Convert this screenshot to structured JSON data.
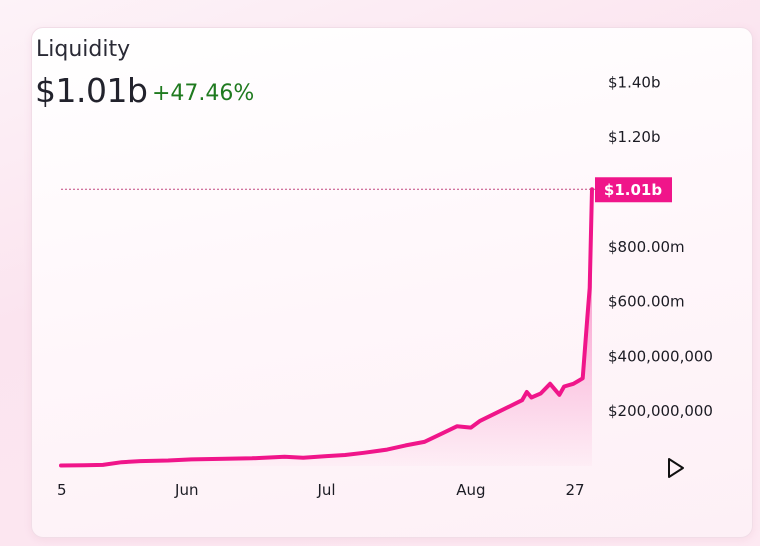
{
  "header": {
    "title": "Liquidity",
    "value": "$1.01b",
    "change": "+47.46%"
  },
  "colors": {
    "accent": "#f0158a",
    "change_positive": "#1f7a1f",
    "text": "#22222c"
  },
  "icons": {
    "play": "play-icon"
  },
  "chart_data": {
    "type": "area",
    "title": "Liquidity",
    "xlabel": "",
    "ylabel": "",
    "ylim": [
      0,
      1500000000
    ],
    "y_ticks": [
      {
        "value": 200000000,
        "label": "$200,000,000"
      },
      {
        "value": 400000000,
        "label": "$400,000,000"
      },
      {
        "value": 600000000,
        "label": "$600.00m"
      },
      {
        "value": 800000000,
        "label": "$800.00m"
      },
      {
        "value": 1200000000,
        "label": "$1.20b"
      },
      {
        "value": 1400000000,
        "label": "$1.40b"
      }
    ],
    "x_ticks": [
      {
        "date": "2024-05-05",
        "label": "5"
      },
      {
        "date": "2024-06-01",
        "label": "Jun"
      },
      {
        "date": "2024-07-01",
        "label": "Jul"
      },
      {
        "date": "2024-08-01",
        "label": "Aug"
      },
      {
        "date": "2024-08-27",
        "label": "27"
      }
    ],
    "current_value": 1010000000,
    "current_label": "$1.01b",
    "grid": false,
    "series": [
      {
        "values": [
          {
            "x": "2024-05-05",
            "y": 2000000
          },
          {
            "x": "2024-05-10",
            "y": 3000000
          },
          {
            "x": "2024-05-14",
            "y": 4000000
          },
          {
            "x": "2024-05-18",
            "y": 14000000
          },
          {
            "x": "2024-05-22",
            "y": 18000000
          },
          {
            "x": "2024-05-28",
            "y": 20000000
          },
          {
            "x": "2024-06-02",
            "y": 24000000
          },
          {
            "x": "2024-06-08",
            "y": 26000000
          },
          {
            "x": "2024-06-15",
            "y": 28000000
          },
          {
            "x": "2024-06-22",
            "y": 34000000
          },
          {
            "x": "2024-06-26",
            "y": 30000000
          },
          {
            "x": "2024-07-01",
            "y": 36000000
          },
          {
            "x": "2024-07-05",
            "y": 40000000
          },
          {
            "x": "2024-07-09",
            "y": 48000000
          },
          {
            "x": "2024-07-14",
            "y": 60000000
          },
          {
            "x": "2024-07-18",
            "y": 75000000
          },
          {
            "x": "2024-07-22",
            "y": 88000000
          },
          {
            "x": "2024-07-26",
            "y": 120000000
          },
          {
            "x": "2024-07-29",
            "y": 145000000
          },
          {
            "x": "2024-08-01",
            "y": 140000000
          },
          {
            "x": "2024-08-03",
            "y": 165000000
          },
          {
            "x": "2024-08-06",
            "y": 190000000
          },
          {
            "x": "2024-08-09",
            "y": 215000000
          },
          {
            "x": "2024-08-12",
            "y": 240000000
          },
          {
            "x": "2024-08-13",
            "y": 270000000
          },
          {
            "x": "2024-08-14",
            "y": 250000000
          },
          {
            "x": "2024-08-16",
            "y": 265000000
          },
          {
            "x": "2024-08-18",
            "y": 300000000
          },
          {
            "x": "2024-08-20",
            "y": 260000000
          },
          {
            "x": "2024-08-21",
            "y": 290000000
          },
          {
            "x": "2024-08-23",
            "y": 300000000
          },
          {
            "x": "2024-08-24",
            "y": 310000000
          },
          {
            "x": "2024-08-25",
            "y": 320000000
          },
          {
            "x": "2024-08-26",
            "y": 540000000
          },
          {
            "x": "2024-08-26T12:00",
            "y": 650000000
          },
          {
            "x": "2024-08-27",
            "y": 1010000000
          }
        ]
      }
    ]
  }
}
